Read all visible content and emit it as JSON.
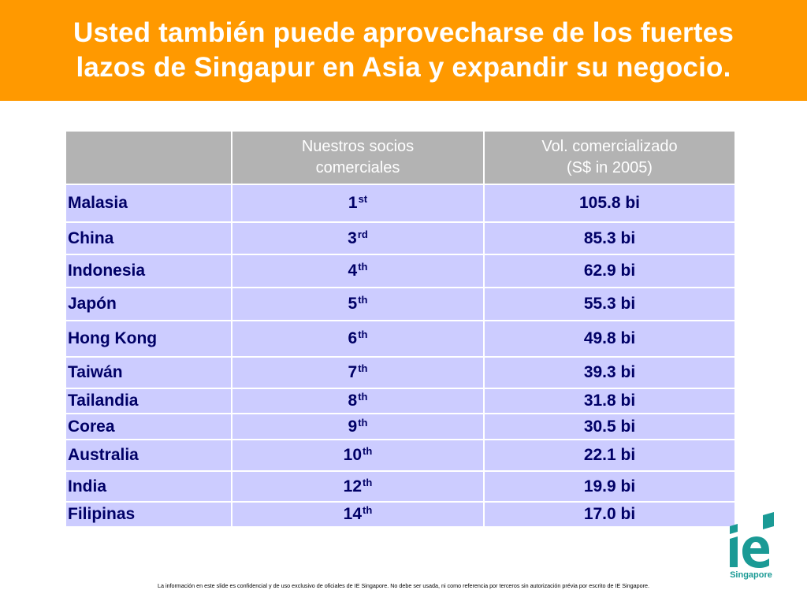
{
  "title": {
    "line1": "Usted también puede aprovecharse de los fuertes",
    "line2": "lazos de Singapur en Asia y expandir su negocio."
  },
  "table": {
    "headers": {
      "col1": "",
      "col2_line1": "Nuestros socios",
      "col2_line2": "comerciales",
      "col3_line1": "Vol. comercializado",
      "col3_line2": "(S$ in 2005)"
    },
    "rows": [
      {
        "country": "Malasia",
        "rank": "1",
        "suffix": "st",
        "volume": "105.8 bi"
      },
      {
        "country": "China",
        "rank": "3",
        "suffix": "rd",
        "volume": "85.3 bi"
      },
      {
        "country": "Indonesia",
        "rank": "4",
        "suffix": "th",
        "volume": "62.9 bi"
      },
      {
        "country": "Japón",
        "rank": "5",
        "suffix": "th",
        "volume": "55.3 bi"
      },
      {
        "country": "Hong Kong",
        "rank": "6",
        "suffix": "th",
        "volume": "49.8 bi"
      },
      {
        "country": "Taiwán",
        "rank": "7",
        "suffix": "th",
        "volume": "39.3 bi"
      },
      {
        "country": "Tailandia",
        "rank": "8",
        "suffix": "th",
        "volume": "31.8 bi"
      },
      {
        "country": "Corea",
        "rank": "9",
        "suffix": "th",
        "volume": "30.5 bi"
      },
      {
        "country": "Australia",
        "rank": "10",
        "suffix": "th",
        "volume": "22.1 bi"
      },
      {
        "country": "India",
        "rank": "12",
        "suffix": "th",
        "volume": "19.9 bi"
      },
      {
        "country": "Filipinas",
        "rank": "14",
        "suffix": "th",
        "volume": "17.0 bi"
      }
    ]
  },
  "logo": {
    "icon": "ie-singapore-logo-icon",
    "text": "Singapore",
    "color": "#1a9a95"
  },
  "footer": "La información en este slide es confidencial y de uso exclusivo de oficiales de IE Singapore. No debe ser usada, ni como referencia por terceros sin autorización prévia por escrito de IE Singapore.",
  "colors": {
    "banner": "#ff9900",
    "header_cell": "#b3b3b3",
    "body_cell": "#ccccff",
    "body_text": "#000066"
  }
}
